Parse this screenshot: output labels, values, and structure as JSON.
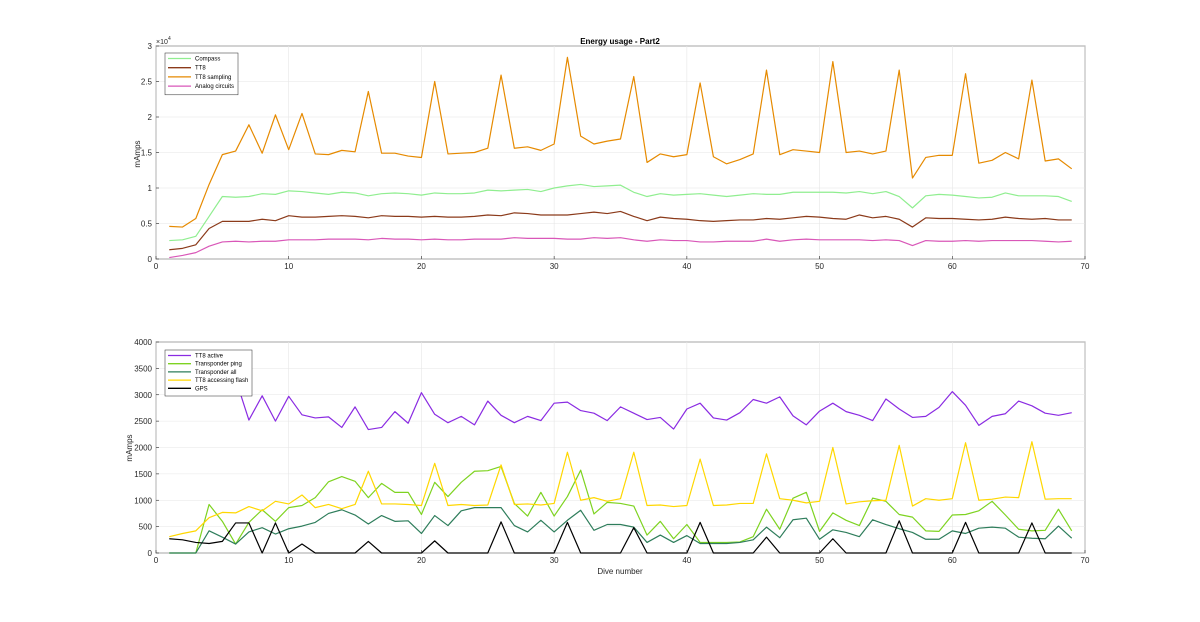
{
  "chart_data": [
    {
      "type": "line",
      "title": "Energy usage - Part2",
      "xlabel": "",
      "ylabel": "mAmps",
      "xlim": [
        0,
        70
      ],
      "ylim": [
        0,
        30000
      ],
      "y_exponent_label": "×10",
      "y_exponent_power": "4",
      "xticks": [
        "0",
        "10",
        "20",
        "30",
        "40",
        "50",
        "60",
        "70"
      ],
      "yticks": [
        "0",
        "0.5",
        "1",
        "1.5",
        "2",
        "2.5",
        "3"
      ],
      "grid": true,
      "legend_position": "top-left",
      "x": [
        1,
        2,
        3,
        4,
        5,
        6,
        7,
        8,
        9,
        10,
        11,
        12,
        13,
        14,
        15,
        16,
        17,
        18,
        19,
        20,
        21,
        22,
        23,
        24,
        25,
        26,
        27,
        28,
        29,
        30,
        31,
        32,
        33,
        34,
        35,
        36,
        37,
        38,
        39,
        40,
        41,
        42,
        43,
        44,
        45,
        46,
        47,
        48,
        49,
        50,
        51,
        52,
        53,
        54,
        55,
        56,
        57,
        58,
        59,
        60,
        61,
        62,
        63,
        64,
        65,
        66,
        67,
        68,
        69
      ],
      "series": [
        {
          "name": "Compass",
          "color": "#90ee90",
          "values": [
            2600,
            2700,
            3200,
            6000,
            8800,
            8700,
            8800,
            9200,
            9100,
            9600,
            9500,
            9300,
            9100,
            9400,
            9300,
            8900,
            9200,
            9300,
            9200,
            9000,
            9300,
            9200,
            9200,
            9300,
            9700,
            9600,
            9700,
            9800,
            9500,
            10000,
            10300,
            10500,
            10200,
            10300,
            10400,
            9400,
            8800,
            9200,
            9000,
            9100,
            9200,
            9000,
            8800,
            9000,
            9200,
            9100,
            9100,
            9400,
            9400,
            9400,
            9400,
            9300,
            9500,
            9200,
            9500,
            8800,
            7200,
            8900,
            9100,
            9000,
            8800,
            8600,
            8700,
            9300,
            8900,
            8900,
            8900,
            8800,
            8100
          ]
        },
        {
          "name": "TT8",
          "color": "#8b3a1a",
          "values": [
            1300,
            1500,
            2000,
            4300,
            5300,
            5300,
            5300,
            5600,
            5400,
            6100,
            5900,
            5900,
            6000,
            6100,
            6000,
            5800,
            6100,
            6000,
            6000,
            5900,
            6000,
            5900,
            5900,
            6000,
            6200,
            6100,
            6500,
            6400,
            6200,
            6200,
            6200,
            6400,
            6600,
            6400,
            6700,
            6000,
            5400,
            5900,
            5700,
            5600,
            5400,
            5300,
            5400,
            5500,
            5500,
            5700,
            5600,
            5800,
            6000,
            5900,
            5700,
            5600,
            6200,
            5800,
            6000,
            5600,
            4500,
            5800,
            5700,
            5700,
            5600,
            5500,
            5600,
            5900,
            5700,
            5600,
            5700,
            5500,
            5500
          ]
        },
        {
          "name": "TT8 sampling",
          "color": "#e68a00",
          "values": [
            4600,
            4500,
            5700,
            10500,
            14700,
            15200,
            18900,
            14900,
            20300,
            15400,
            20500,
            14800,
            14700,
            15300,
            15100,
            23600,
            14900,
            14900,
            14500,
            14300,
            25000,
            14800,
            14900,
            15000,
            15600,
            25900,
            15600,
            15800,
            15300,
            16200,
            28400,
            17300,
            16200,
            16600,
            16900,
            25700,
            13600,
            14800,
            14400,
            14700,
            24800,
            14400,
            13400,
            14000,
            14800,
            26600,
            14700,
            15400,
            15200,
            15000,
            27800,
            15000,
            15200,
            14800,
            15200,
            26600,
            11400,
            14300,
            14600,
            14600,
            26100,
            13500,
            13900,
            15000,
            14100,
            25200,
            13800,
            14100,
            12700
          ]
        },
        {
          "name": "Analog circuits",
          "color": "#d957b8",
          "values": [
            200,
            500,
            900,
            1800,
            2400,
            2500,
            2400,
            2500,
            2500,
            2700,
            2700,
            2700,
            2800,
            2800,
            2800,
            2700,
            2900,
            2800,
            2800,
            2700,
            2800,
            2700,
            2700,
            2800,
            2800,
            2800,
            3000,
            2900,
            2900,
            2900,
            2800,
            2800,
            3000,
            2900,
            3000,
            2700,
            2500,
            2700,
            2600,
            2600,
            2400,
            2400,
            2500,
            2500,
            2500,
            2800,
            2500,
            2700,
            2800,
            2700,
            2700,
            2700,
            2700,
            2600,
            2700,
            2600,
            1900,
            2600,
            2500,
            2500,
            2600,
            2500,
            2600,
            2600,
            2600,
            2600,
            2500,
            2400,
            2500
          ]
        }
      ]
    },
    {
      "type": "line",
      "title": "",
      "xlabel": "Dive number",
      "ylabel": "mAmps",
      "xlim": [
        0,
        70
      ],
      "ylim": [
        0,
        4000
      ],
      "xticks": [
        "0",
        "10",
        "20",
        "30",
        "40",
        "50",
        "60",
        "70"
      ],
      "yticks": [
        "0",
        "500",
        "1000",
        "1500",
        "2000",
        "2500",
        "3000",
        "3500",
        "4000"
      ],
      "grid": true,
      "legend_position": "top-left",
      "x": [
        1,
        2,
        3,
        4,
        5,
        6,
        7,
        8,
        9,
        10,
        11,
        12,
        13,
        14,
        15,
        16,
        17,
        18,
        19,
        20,
        21,
        22,
        23,
        24,
        25,
        26,
        27,
        28,
        29,
        30,
        31,
        32,
        33,
        34,
        35,
        36,
        37,
        38,
        39,
        40,
        41,
        42,
        43,
        44,
        45,
        46,
        47,
        48,
        49,
        50,
        51,
        52,
        53,
        54,
        55,
        56,
        57,
        58,
        59,
        60,
        61,
        62,
        63,
        64,
        65,
        66,
        67,
        68,
        69
      ],
      "series": [
        {
          "name": "TT8 active",
          "color": "#8a2be2",
          "values": [
            null,
            null,
            null,
            null,
            null,
            3300,
            2520,
            2980,
            2500,
            2970,
            2620,
            2560,
            2580,
            2380,
            2770,
            2340,
            2380,
            2680,
            2460,
            3040,
            2630,
            2470,
            2590,
            2430,
            2880,
            2610,
            2470,
            2590,
            2510,
            2840,
            2860,
            2700,
            2650,
            2510,
            2770,
            2650,
            2530,
            2570,
            2350,
            2730,
            2840,
            2560,
            2520,
            2660,
            2910,
            2840,
            2960,
            2600,
            2430,
            2690,
            2840,
            2680,
            2610,
            2510,
            2920,
            2730,
            2570,
            2590,
            2760,
            3060,
            2800,
            2420,
            2590,
            2640,
            2880,
            2790,
            2650,
            2610,
            2660
          ]
        },
        {
          "name": "Transponder ping",
          "color": "#7ed321",
          "values": [
            0,
            0,
            0,
            920,
            600,
            170,
            580,
            820,
            600,
            860,
            900,
            1050,
            1350,
            1450,
            1360,
            1050,
            1320,
            1150,
            1150,
            730,
            1340,
            1070,
            1340,
            1550,
            1560,
            1640,
            940,
            700,
            1150,
            700,
            1070,
            1570,
            740,
            960,
            940,
            890,
            340,
            600,
            270,
            540,
            200,
            200,
            200,
            210,
            310,
            830,
            450,
            1040,
            1150,
            410,
            760,
            620,
            520,
            1040,
            980,
            730,
            680,
            420,
            410,
            720,
            730,
            800,
            980,
            720,
            450,
            420,
            430,
            830,
            420
          ]
        },
        {
          "name": "Transponder all",
          "color": "#2e7d5b",
          "values": [
            0,
            0,
            0,
            420,
            300,
            170,
            400,
            480,
            360,
            460,
            510,
            580,
            750,
            820,
            720,
            550,
            710,
            600,
            610,
            370,
            710,
            520,
            800,
            860,
            860,
            860,
            520,
            400,
            620,
            400,
            620,
            810,
            430,
            540,
            540,
            490,
            200,
            340,
            200,
            330,
            180,
            180,
            180,
            200,
            250,
            490,
            290,
            630,
            660,
            260,
            440,
            390,
            310,
            630,
            540,
            460,
            390,
            260,
            260,
            420,
            370,
            470,
            490,
            470,
            300,
            280,
            270,
            510,
            280
          ]
        },
        {
          "name": "TT8 accessing flash",
          "color": "#ffd700",
          "values": [
            310,
            370,
            420,
            670,
            770,
            760,
            880,
            800,
            980,
            930,
            1100,
            860,
            920,
            840,
            920,
            1550,
            930,
            930,
            920,
            900,
            1700,
            900,
            920,
            900,
            910,
            1670,
            920,
            930,
            910,
            940,
            1910,
            1000,
            1050,
            980,
            1030,
            1910,
            900,
            910,
            880,
            900,
            1780,
            900,
            910,
            940,
            940,
            1880,
            1030,
            1000,
            950,
            980,
            2000,
            930,
            970,
            990,
            1000,
            2040,
            890,
            1030,
            1000,
            1030,
            2090,
            1000,
            1020,
            1060,
            1050,
            2110,
            1020,
            1030,
            1030
          ]
        },
        {
          "name": "GPS",
          "color": "#000000",
          "values": [
            270,
            250,
            200,
            180,
            220,
            570,
            570,
            0,
            570,
            0,
            170,
            0,
            0,
            0,
            0,
            220,
            0,
            0,
            0,
            0,
            230,
            0,
            0,
            0,
            0,
            590,
            0,
            0,
            0,
            0,
            580,
            0,
            0,
            0,
            0,
            480,
            0,
            0,
            0,
            0,
            580,
            0,
            0,
            0,
            0,
            300,
            0,
            0,
            0,
            0,
            270,
            0,
            0,
            0,
            0,
            610,
            0,
            0,
            0,
            0,
            580,
            0,
            0,
            0,
            0,
            570,
            0,
            0,
            0
          ]
        }
      ]
    }
  ]
}
